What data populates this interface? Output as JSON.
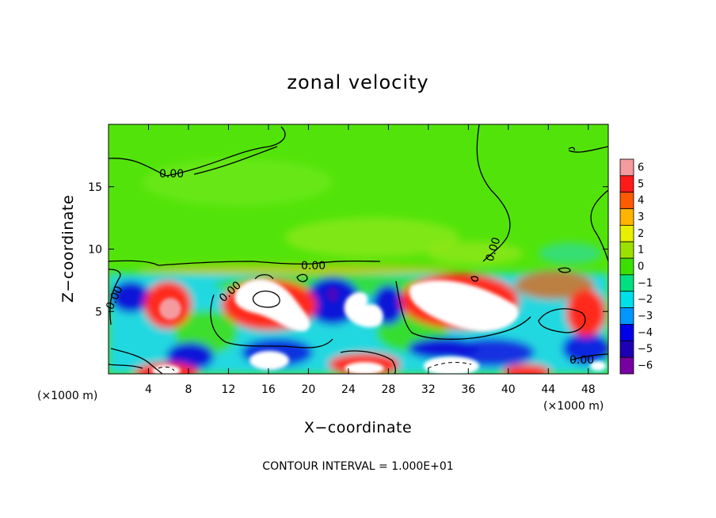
{
  "chart_data": {
    "type": "heatmap",
    "title": "zonal velocity",
    "xlabel": "X−coordinate",
    "ylabel": "Z−coordinate",
    "x_unit": "(×1000 m)",
    "x_unit_right": "(×1000 m)",
    "xlim": [
      0,
      50
    ],
    "ylim": [
      0,
      20
    ],
    "x_ticks": [
      4,
      8,
      12,
      16,
      20,
      24,
      28,
      32,
      36,
      40,
      44,
      48
    ],
    "y_ticks": [
      5,
      10,
      15
    ],
    "colorbar": {
      "levels": [
        "6",
        "5",
        "4",
        "3",
        "2",
        "1",
        "0",
        "−1",
        "−2",
        "−3",
        "−4",
        "−5",
        "−6"
      ],
      "colors": [
        "#f49ba0",
        "#ff1a1a",
        "#ff5a00",
        "#ffb400",
        "#e8f000",
        "#9be000",
        "#3ce000",
        "#00e080",
        "#00e0e8",
        "#0096ff",
        "#0000e8",
        "#1e00b4",
        "#7800a0"
      ]
    },
    "contour_labels": [
      "0.00",
      "0.00",
      "0.00",
      "0.00",
      "0.00",
      "0.00"
    ],
    "footer": "CONTOUR INTERVAL = 1.000E+01",
    "grid": false,
    "legend_placement": "right"
  }
}
